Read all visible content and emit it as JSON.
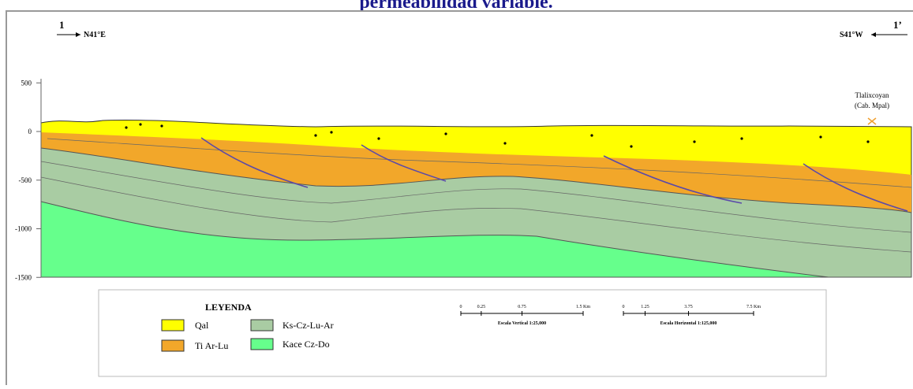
{
  "title": "permeabilidad variable.",
  "section": {
    "start_label": "1",
    "start_direction": "N41°E",
    "end_label": "1’",
    "end_direction": "S41°W",
    "place_name": "Tlalixcoyan",
    "place_note": "(Cab. Mpal)"
  },
  "axis": {
    "ticks": [
      500,
      0,
      -500,
      -1000,
      -1500
    ]
  },
  "legend": {
    "title": "LEYENDA",
    "items": [
      "Qal",
      "Ti Ar-Lu",
      "Ks-Cz-Lu-Ar",
      "Kace Cz-Do"
    ]
  },
  "scales": [
    {
      "labels": [
        "0",
        "0.25",
        "0.75",
        "1.5 Km"
      ],
      "caption": "Escala Vertical 1:25,000"
    },
    {
      "labels": [
        "0",
        "1.25",
        "3.75",
        "7.5 Km"
      ],
      "caption": "Escala Horizontal 1:125,000"
    }
  ]
}
